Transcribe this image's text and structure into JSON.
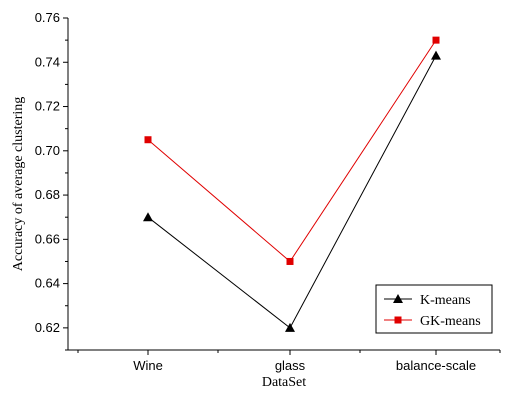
{
  "chart_data": {
    "type": "line",
    "categories": [
      "Wine",
      "glass",
      "balance-scale"
    ],
    "series": [
      {
        "name": "K-means",
        "values": [
          0.67,
          0.62,
          0.743
        ],
        "color": "#000000",
        "marker": "triangle"
      },
      {
        "name": "GK-means",
        "values": [
          0.705,
          0.65,
          0.75
        ],
        "color": "#e00000",
        "marker": "square"
      }
    ],
    "xlabel": "DataSet",
    "ylabel": "Accuracy of average clustering",
    "ylim": [
      0.61,
      0.76
    ],
    "yticks": [
      "0.62",
      "0.64",
      "0.66",
      "0.68",
      "0.70",
      "0.72",
      "0.74",
      "0.76"
    ],
    "grid": false,
    "legend_position": "bottom-right"
  }
}
